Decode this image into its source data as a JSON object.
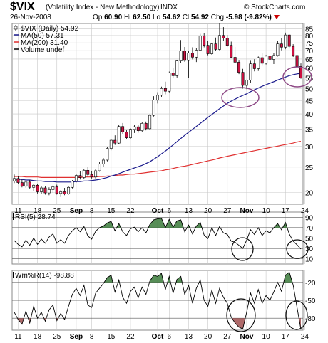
{
  "header": {
    "symbol": "$VIX",
    "description": "(Volatility Index - New Methodology)",
    "exchange": "INDX",
    "copyright": "© StockCharts.com",
    "date": "26-Nov-2008",
    "open_label": "Op",
    "open": "60.90",
    "high_label": "Hi",
    "high": "62.50",
    "low_label": "Lo",
    "low": "54.62",
    "close_label": "Cl",
    "close": "54.92",
    "change_label": "Chg",
    "change": "-5.98 (-9.82%)"
  },
  "colors": {
    "up_candle": "#ffffff",
    "down_candle": "#cc1040",
    "ma50": "#1a1a8c",
    "ma200": "#e03030",
    "grid": "#c8c8c8",
    "fill_green": "#3a7a3a",
    "fill_red": "#a05050",
    "circle": "#8e4a86",
    "circle_dark": "#111111"
  },
  "chart_data": [
    {
      "type": "candlestick",
      "panel": "price",
      "legend": [
        {
          "label": "$VIX (Daily) 54.92",
          "icon": "candle"
        },
        {
          "label": "MA(50) 57.31",
          "color": "#1a1a8c"
        },
        {
          "label": "MA(200) 31.40",
          "color": "#e03030"
        },
        {
          "label": "Volume undef",
          "color": "#000000"
        }
      ],
      "y_ticks": [
        85,
        80,
        75,
        70,
        65,
        60,
        55,
        50,
        45,
        40,
        35,
        30,
        25,
        20
      ],
      "ylim": [
        18,
        89
      ],
      "log_scale": true,
      "x_ticks": [
        {
          "label": "11",
          "i": 1
        },
        {
          "label": "18",
          "i": 6
        },
        {
          "label": "25",
          "i": 11
        },
        {
          "label": "Sep",
          "i": 16
        },
        {
          "label": "8",
          "i": 20
        },
        {
          "label": "15",
          "i": 25
        },
        {
          "label": "22",
          "i": 30
        },
        {
          "label": "Oct",
          "i": 37
        },
        {
          "label": "6",
          "i": 40
        },
        {
          "label": "13",
          "i": 45
        },
        {
          "label": "20",
          "i": 50
        },
        {
          "label": "27",
          "i": 55
        },
        {
          "label": "Nov",
          "i": 60
        },
        {
          "label": "10",
          "i": 65
        },
        {
          "label": "17",
          "i": 70
        },
        {
          "label": "24",
          "i": 75
        }
      ],
      "ohlc": [
        [
          22.1,
          23.4,
          21.7,
          22.6
        ],
        [
          22.6,
          23.1,
          21.5,
          21.8
        ],
        [
          21.8,
          22.4,
          20.9,
          21.1
        ],
        [
          21.1,
          22.2,
          20.8,
          21.9
        ],
        [
          21.9,
          22.3,
          20.6,
          20.9
        ],
        [
          20.9,
          21.6,
          20.2,
          21.3
        ],
        [
          21.3,
          21.5,
          19.8,
          20.1
        ],
        [
          20.1,
          21.1,
          19.7,
          20.8
        ],
        [
          20.8,
          21.2,
          19.6,
          19.9
        ],
        [
          19.9,
          20.9,
          19.5,
          20.5
        ],
        [
          20.5,
          21.3,
          19.9,
          21.0
        ],
        [
          21.0,
          21.4,
          19.6,
          19.8
        ],
        [
          19.8,
          20.4,
          19.2,
          20.1
        ],
        [
          20.1,
          20.8,
          19.5,
          19.7
        ],
        [
          19.7,
          21.2,
          19.6,
          20.9
        ],
        [
          20.9,
          22.3,
          20.7,
          22.1
        ],
        [
          22.1,
          23.5,
          21.8,
          23.2
        ],
        [
          23.2,
          24.1,
          22.4,
          22.8
        ],
        [
          22.8,
          24.6,
          22.5,
          24.3
        ],
        [
          24.3,
          25.0,
          22.9,
          23.4
        ],
        [
          23.4,
          24.2,
          22.6,
          22.9
        ],
        [
          22.9,
          24.5,
          22.6,
          24.2
        ],
        [
          24.2,
          26.1,
          24.0,
          25.7
        ],
        [
          25.7,
          27.1,
          25.1,
          26.6
        ],
        [
          26.6,
          29.8,
          26.3,
          29.5
        ],
        [
          29.5,
          32.0,
          29.0,
          31.7
        ],
        [
          31.7,
          33.1,
          30.4,
          30.9
        ],
        [
          30.9,
          36.2,
          30.7,
          35.8
        ],
        [
          35.8,
          36.9,
          33.4,
          34.1
        ],
        [
          34.1,
          34.8,
          31.9,
          32.4
        ],
        [
          32.4,
          35.2,
          32.0,
          34.9
        ],
        [
          34.9,
          36.4,
          33.8,
          35.7
        ],
        [
          35.7,
          36.3,
          33.9,
          34.5
        ],
        [
          34.5,
          37.2,
          34.2,
          36.8
        ],
        [
          36.8,
          37.4,
          34.6,
          35.1
        ],
        [
          35.1,
          39.9,
          34.8,
          39.5
        ],
        [
          39.5,
          46.8,
          39.1,
          45.3
        ],
        [
          45.3,
          48.5,
          43.9,
          47.2
        ],
        [
          47.2,
          50.9,
          46.4,
          50.1
        ],
        [
          50.1,
          53.2,
          47.6,
          48.9
        ],
        [
          48.9,
          58.2,
          48.4,
          57.4
        ],
        [
          57.4,
          59.9,
          54.8,
          56.1
        ],
        [
          56.1,
          64.3,
          55.2,
          63.9
        ],
        [
          63.9,
          76.9,
          62.7,
          69.9
        ],
        [
          69.9,
          72.3,
          63.4,
          64.2
        ],
        [
          64.2,
          69.8,
          55.1,
          68.6
        ],
        [
          68.6,
          72.1,
          64.8,
          66.1
        ],
        [
          66.1,
          71.4,
          63.3,
          70.3
        ],
        [
          70.3,
          81.2,
          69.8,
          79.8
        ],
        [
          79.8,
          81.5,
          72.1,
          73.4
        ],
        [
          73.4,
          76.4,
          67.2,
          68.1
        ],
        [
          68.1,
          74.9,
          67.5,
          74.3
        ],
        [
          74.3,
          78.6,
          69.9,
          70.8
        ],
        [
          70.8,
          89.5,
          70.2,
          80.1
        ],
        [
          80.1,
          86.2,
          76.4,
          78.3
        ],
        [
          78.3,
          80.4,
          72.5,
          73.4
        ],
        [
          73.4,
          75.8,
          65.4,
          66.0
        ],
        [
          66.0,
          72.3,
          62.5,
          63.2
        ],
        [
          63.2,
          64.1,
          56.9,
          57.8
        ],
        [
          57.8,
          59.6,
          50.1,
          51.5
        ],
        [
          51.5,
          54.2,
          49.8,
          53.9
        ],
        [
          53.9,
          64.0,
          52.8,
          62.3
        ],
        [
          62.3,
          64.9,
          58.3,
          59.7
        ],
        [
          59.7,
          66.5,
          58.5,
          65.8
        ],
        [
          65.8,
          68.3,
          61.2,
          62.6
        ],
        [
          62.6,
          67.4,
          61.9,
          66.7
        ],
        [
          66.7,
          69.1,
          63.5,
          64.8
        ],
        [
          64.8,
          68.4,
          62.2,
          67.1
        ],
        [
          67.1,
          76.4,
          66.5,
          74.3
        ],
        [
          74.3,
          78.1,
          70.2,
          72.2
        ],
        [
          72.2,
          82.1,
          70.9,
          80.4
        ],
        [
          80.4,
          80.9,
          71.3,
          72.7
        ],
        [
          72.7,
          74.1,
          66.2,
          67.1
        ],
        [
          67.1,
          68.4,
          61.6,
          60.9
        ],
        [
          60.9,
          62.5,
          54.62,
          54.92
        ]
      ],
      "ma50": [
        22.5,
        22.4,
        22.4,
        22.3,
        22.3,
        22.2,
        22.1,
        22.1,
        22.0,
        22.0,
        22.0,
        21.9,
        21.9,
        21.9,
        21.9,
        21.9,
        22.0,
        22.0,
        22.1,
        22.1,
        22.2,
        22.3,
        22.4,
        22.6,
        22.8,
        23.1,
        23.3,
        23.6,
        23.9,
        24.2,
        24.5,
        24.8,
        25.1,
        25.4,
        25.8,
        26.2,
        26.8,
        27.4,
        28.1,
        28.8,
        29.6,
        30.4,
        31.3,
        32.2,
        33.1,
        34.0,
        34.9,
        35.8,
        36.8,
        37.8,
        38.8,
        39.8,
        40.8,
        41.9,
        42.9,
        43.9,
        44.8,
        45.6,
        46.4,
        47.1,
        47.8,
        48.7,
        49.5,
        50.3,
        51.1,
        51.8,
        52.5,
        53.2,
        54.0,
        54.7,
        55.4,
        56.1,
        56.6,
        57.0,
        57.31
      ],
      "ma200": [
        23.0,
        23.0,
        23.0,
        22.9,
        22.9,
        22.9,
        22.9,
        22.8,
        22.8,
        22.8,
        22.8,
        22.8,
        22.8,
        22.8,
        22.8,
        22.8,
        22.8,
        22.8,
        22.9,
        22.9,
        22.9,
        22.9,
        23.0,
        23.0,
        23.1,
        23.1,
        23.2,
        23.3,
        23.3,
        23.4,
        23.5,
        23.5,
        23.6,
        23.7,
        23.8,
        23.9,
        24.0,
        24.1,
        24.2,
        24.4,
        24.5,
        24.7,
        24.9,
        25.1,
        25.2,
        25.4,
        25.6,
        25.8,
        26.0,
        26.2,
        26.4,
        26.6,
        26.8,
        27.1,
        27.3,
        27.5,
        27.7,
        27.9,
        28.1,
        28.3,
        28.5,
        28.7,
        28.9,
        29.1,
        29.3,
        29.5,
        29.7,
        29.9,
        30.1,
        30.3,
        30.5,
        30.7,
        30.9,
        31.2,
        31.4
      ]
    },
    {
      "type": "line",
      "panel": "rsi",
      "legend": "RSI(5) 28.74",
      "y_ticks": [
        90,
        70,
        50,
        30,
        10
      ],
      "ylim": [
        0,
        100
      ],
      "fill_above": 70,
      "fill_below": 30,
      "values": [
        45,
        38,
        33,
        46,
        36,
        50,
        38,
        48,
        40,
        52,
        58,
        40,
        47,
        40,
        55,
        64,
        70,
        62,
        72,
        54,
        48,
        63,
        70,
        73,
        79,
        82,
        64,
        78,
        62,
        55,
        68,
        71,
        62,
        70,
        60,
        76,
        85,
        87,
        88,
        70,
        86,
        71,
        83,
        85,
        62,
        75,
        58,
        73,
        80,
        56,
        49,
        70,
        55,
        72,
        60,
        57,
        44,
        42,
        36,
        30,
        46,
        66,
        57,
        70,
        55,
        64,
        60,
        70,
        78,
        66,
        80,
        58,
        44,
        37,
        28.74
      ]
    },
    {
      "type": "line",
      "panel": "williams",
      "legend": "Wm%R(14) -98.88",
      "y_ticks": [
        -20,
        -50,
        -80
      ],
      "ylim": [
        -100,
        0
      ],
      "fill_above": -20,
      "fill_below": -80,
      "values": [
        -70,
        -82,
        -90,
        -68,
        -88,
        -60,
        -80,
        -70,
        -85,
        -66,
        -58,
        -84,
        -72,
        -82,
        -60,
        -40,
        -30,
        -42,
        -25,
        -58,
        -62,
        -38,
        -30,
        -22,
        -12,
        -8,
        -36,
        -16,
        -45,
        -55,
        -35,
        -28,
        -46,
        -28,
        -40,
        -18,
        -8,
        -10,
        -5,
        -32,
        -10,
        -38,
        -15,
        -10,
        -40,
        -25,
        -55,
        -30,
        -16,
        -50,
        -60,
        -33,
        -55,
        -30,
        -45,
        -55,
        -78,
        -88,
        -95,
        -98,
        -70,
        -38,
        -55,
        -32,
        -55,
        -42,
        -50,
        -36,
        -20,
        -35,
        -8,
        -3,
        -24,
        -62,
        -98.88
      ]
    }
  ]
}
